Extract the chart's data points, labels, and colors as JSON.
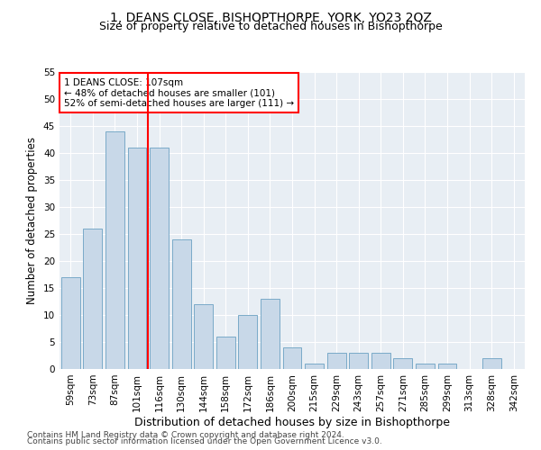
{
  "title": "1, DEANS CLOSE, BISHOPTHORPE, YORK, YO23 2QZ",
  "subtitle": "Size of property relative to detached houses in Bishopthorpe",
  "xlabel": "Distribution of detached houses by size in Bishopthorpe",
  "ylabel": "Number of detached properties",
  "categories": [
    "59sqm",
    "73sqm",
    "87sqm",
    "101sqm",
    "116sqm",
    "130sqm",
    "144sqm",
    "158sqm",
    "172sqm",
    "186sqm",
    "200sqm",
    "215sqm",
    "229sqm",
    "243sqm",
    "257sqm",
    "271sqm",
    "285sqm",
    "299sqm",
    "313sqm",
    "328sqm",
    "342sqm"
  ],
  "values": [
    17,
    26,
    44,
    41,
    41,
    24,
    12,
    6,
    10,
    13,
    4,
    1,
    3,
    3,
    3,
    2,
    1,
    1,
    0,
    2,
    0
  ],
  "bar_color": "#c8d8e8",
  "bar_edgecolor": "#7aaac8",
  "vline_x": 3.5,
  "vline_color": "red",
  "annotation_line1": "1 DEANS CLOSE: 107sqm",
  "annotation_line2": "← 48% of detached houses are smaller (101)",
  "annotation_line3": "52% of semi-detached houses are larger (111) →",
  "annotation_box_color": "white",
  "annotation_box_edgecolor": "red",
  "ylim": [
    0,
    55
  ],
  "yticks": [
    0,
    5,
    10,
    15,
    20,
    25,
    30,
    35,
    40,
    45,
    50,
    55
  ],
  "bg_color": "#e8eef4",
  "footer1": "Contains HM Land Registry data © Crown copyright and database right 2024.",
  "footer2": "Contains public sector information licensed under the Open Government Licence v3.0.",
  "title_fontsize": 10,
  "subtitle_fontsize": 9,
  "xlabel_fontsize": 9,
  "ylabel_fontsize": 8.5,
  "tick_fontsize": 7.5,
  "annotation_fontsize": 7.5,
  "footer_fontsize": 6.5
}
